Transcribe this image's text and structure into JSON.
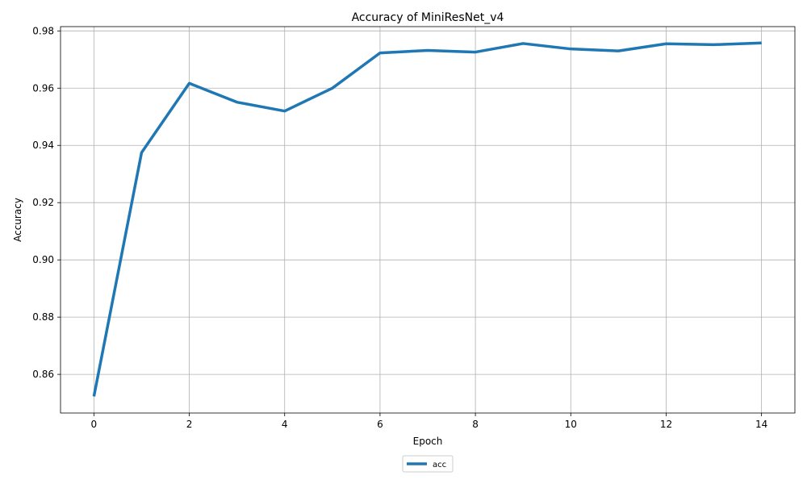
{
  "chart_data": {
    "type": "line",
    "title": "Accuracy of MiniResNet_v4",
    "xlabel": "Epoch",
    "ylabel": "Accuracy",
    "x": [
      0,
      1,
      2,
      3,
      4,
      5,
      6,
      7,
      8,
      9,
      10,
      11,
      12,
      13,
      14
    ],
    "series": [
      {
        "name": "acc",
        "values": [
          0.8523,
          0.9375,
          0.9617,
          0.9551,
          0.952,
          0.96,
          0.9723,
          0.9732,
          0.9726,
          0.9756,
          0.9737,
          0.973,
          0.9755,
          0.9752,
          0.9758
        ]
      }
    ],
    "xlim": [
      -0.7,
      14.7
    ],
    "ylim": [
      0.8465,
      0.9815
    ],
    "xticks": [
      0,
      2,
      4,
      6,
      8,
      10,
      12,
      14
    ],
    "xtick_labels": [
      "0",
      "2",
      "4",
      "6",
      "8",
      "10",
      "12",
      "14"
    ],
    "yticks": [
      0.86,
      0.88,
      0.9,
      0.92,
      0.94,
      0.96,
      0.98
    ],
    "ytick_labels": [
      "0.86",
      "0.88",
      "0.90",
      "0.92",
      "0.94",
      "0.96",
      "0.98"
    ],
    "grid": true,
    "legend_position": "bottom-center",
    "line_color": "#1f77b4",
    "grid_color": "#b0b0b0"
  }
}
